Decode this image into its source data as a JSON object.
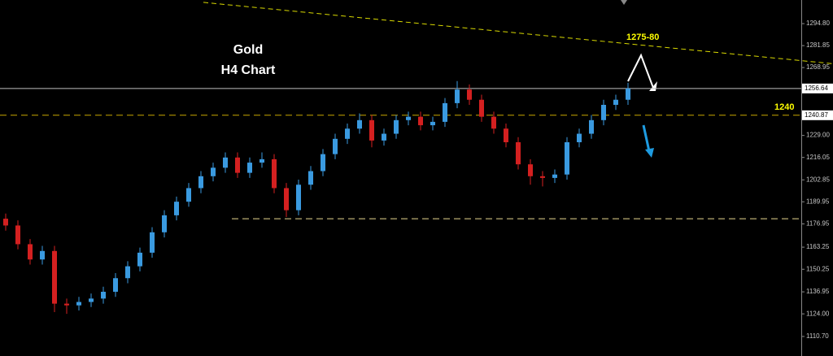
{
  "chart_data": {
    "type": "candlestick",
    "title": "Gold",
    "subtitle": "H4 Chart",
    "annotations": [
      "1275-80",
      "1240"
    ],
    "categories": [
      null,
      null,
      null,
      null,
      null,
      null,
      null,
      null,
      null,
      null,
      null,
      null,
      null,
      null,
      null,
      null,
      null,
      null,
      null,
      null,
      null,
      null,
      null,
      null,
      null,
      null,
      null,
      null,
      null,
      null,
      null,
      null,
      null,
      null,
      null,
      null,
      null,
      null,
      null,
      null,
      null,
      null,
      null,
      null,
      null,
      null,
      null,
      null,
      null,
      null,
      null,
      null
    ],
    "open": [
      1180,
      1176,
      1165,
      1156,
      1161,
      1130,
      1129,
      1131,
      1133,
      1137,
      1145,
      1152,
      1160,
      1172,
      1182,
      1190,
      1198,
      1205,
      1210,
      1216,
      1207,
      1213,
      1215,
      1198,
      1185,
      1200,
      1208,
      1218,
      1227,
      1233,
      1238,
      1226,
      1230,
      1238,
      1240,
      1235,
      1237,
      1248,
      1256,
      1250,
      1240,
      1233,
      1225,
      1212,
      1205,
      1204,
      1206,
      1225,
      1230,
      1238,
      1247,
      1250
    ],
    "high": [
      1183,
      1179,
      1168,
      1164,
      1164,
      1133,
      1134,
      1136,
      1140,
      1148,
      1155,
      1163,
      1175,
      1185,
      1193,
      1201,
      1208,
      1213,
      1219,
      1219,
      1216,
      1219,
      1218,
      1201,
      1203,
      1211,
      1221,
      1230,
      1236,
      1242,
      1241,
      1233,
      1241,
      1243,
      1243,
      1240,
      1251,
      1261,
      1259,
      1253,
      1243,
      1236,
      1228,
      1215,
      1208,
      1209,
      1228,
      1233,
      1241,
      1250,
      1253,
      1260
    ],
    "low": [
      1173,
      1162,
      1153,
      1153,
      1125,
      1124,
      1126,
      1128,
      1130,
      1134,
      1142,
      1149,
      1157,
      1169,
      1179,
      1187,
      1195,
      1202,
      1207,
      1204,
      1204,
      1210,
      1195,
      1181,
      1182,
      1197,
      1205,
      1215,
      1224,
      1230,
      1222,
      1223,
      1227,
      1235,
      1232,
      1232,
      1234,
      1245,
      1247,
      1237,
      1230,
      1222,
      1209,
      1200,
      1199,
      1201,
      1203,
      1222,
      1227,
      1235,
      1244,
      1247
    ],
    "close": [
      1176,
      1165,
      1156,
      1161,
      1130,
      1129,
      1131,
      1133,
      1137,
      1145,
      1152,
      1160,
      1172,
      1182,
      1190,
      1198,
      1205,
      1210,
      1216,
      1207,
      1213,
      1215,
      1198,
      1185,
      1200,
      1208,
      1218,
      1227,
      1233,
      1238,
      1226,
      1230,
      1238,
      1240,
      1235,
      1237,
      1248,
      1256,
      1250,
      1240,
      1233,
      1225,
      1212,
      1205,
      1204,
      1206,
      1225,
      1230,
      1238,
      1247,
      1250,
      1256.64
    ],
    "up_color": "#3a9ae0",
    "down_color": "#d42020",
    "ylim": [
      1099.2,
      1308.7
    ],
    "yticks": [
      {
        "value": 1294.8,
        "label": "1294.80"
      },
      1281.85,
      1268.95,
      {
        "value": 1229,
        "label": "1229.00"
      },
      1216.05,
      1202.85,
      1189.95,
      1176.95,
      1163.25,
      1150.25,
      1136.95,
      {
        "value": 1124,
        "label": "1124.00"
      },
      {
        "value": 1110.7,
        "label": "1110.70"
      }
    ],
    "price_lines": [
      {
        "value": 1256.64,
        "color": "#c0c0c0",
        "dashed": false,
        "boxed": true
      },
      {
        "value": 1240.87,
        "color": "#c8a800",
        "dashed": true,
        "boxed": true
      },
      {
        "value": 1180,
        "color": "#e8d890",
        "dashed": true,
        "boxed": false
      }
    ],
    "trendline": {
      "values": [
        1307.3,
        1271.2
      ],
      "color": "#d8d800"
    }
  }
}
